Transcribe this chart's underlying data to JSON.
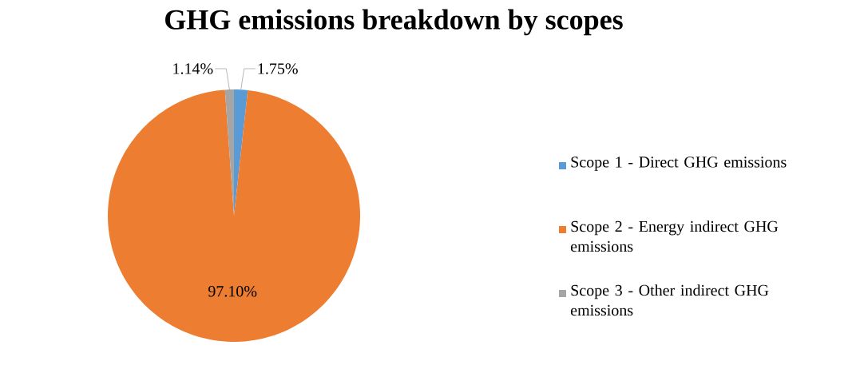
{
  "chart_data": {
    "type": "pie",
    "title": "GHG emissions breakdown by scopes",
    "categories": [
      "Scope 1 - Direct GHG emissions",
      "Scope 2 - Energy indirect GHG emissions",
      "Scope 3 - Other indirect GHG emissions"
    ],
    "values": [
      1.75,
      97.1,
      1.14
    ],
    "value_labels": [
      "1.75%",
      "97.10%",
      "1.14%"
    ],
    "colors": [
      "#5b9bd5",
      "#ed7d31",
      "#a5a5a5"
    ],
    "legend": "right"
  }
}
